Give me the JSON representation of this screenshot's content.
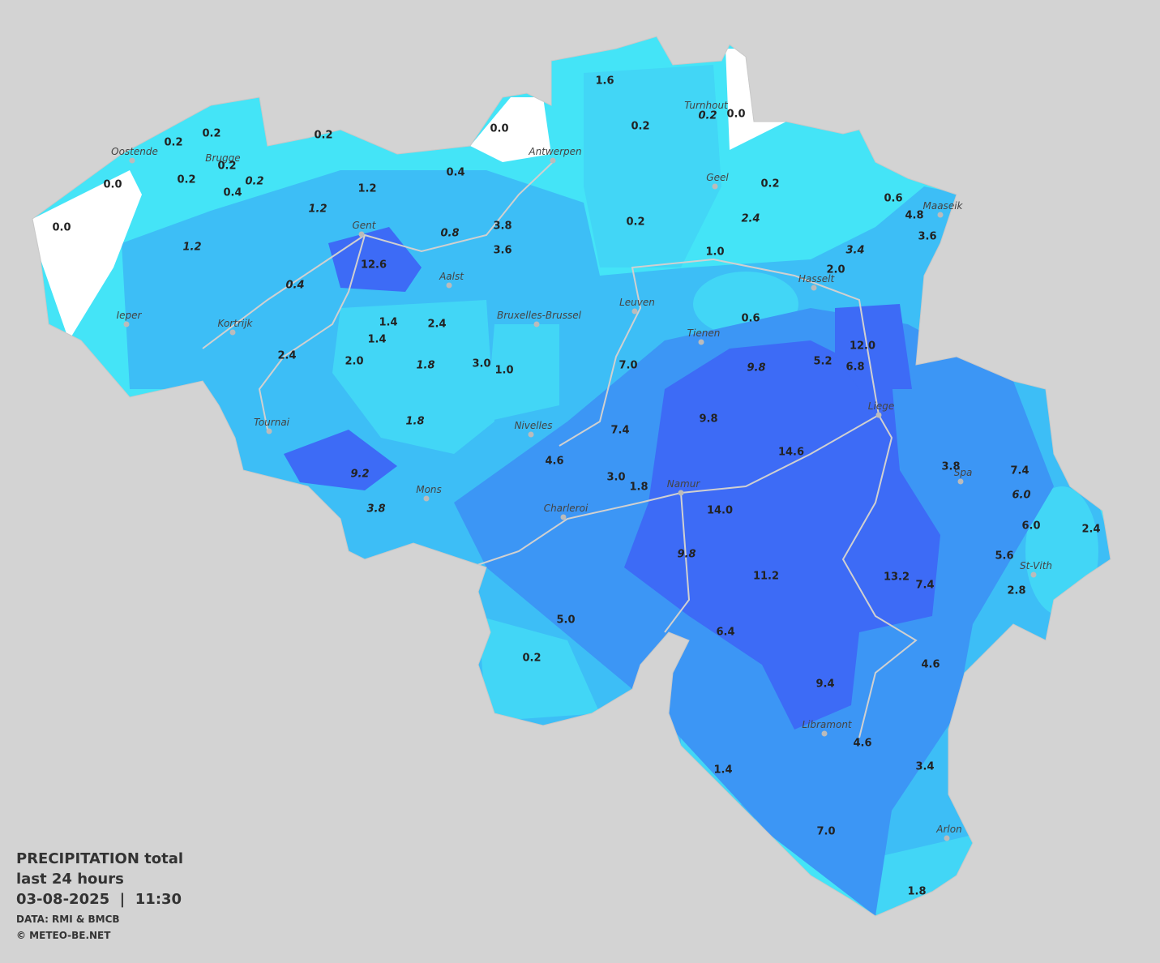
{
  "title": {
    "line1": "PRECIPITATION total",
    "line2": "last 24 hours",
    "line3": "03-08-2025  |  11:30",
    "source": "DATA: RMI & BMCB",
    "credit": "© METEO-BE.NET"
  },
  "cities": [
    "Oostende",
    "Brugge",
    "Antwerpen",
    "Turnhout",
    "Geel",
    "Maaseik",
    "Gent",
    "Aalst",
    "Hasselt",
    "Ieper",
    "Kortrijk",
    "Leuven",
    "Bruxelles-Brussel",
    "Tienen",
    "Liege",
    "Tournai",
    "Nivelles",
    "Spa",
    "Mons",
    "Namur",
    "Charleroi",
    "St-Vith",
    "Libramont",
    "Arlon"
  ],
  "stations": [
    {
      "text": "0.0",
      "italic": false
    },
    {
      "text": "0.0",
      "italic": false
    },
    {
      "text": "0.2",
      "italic": false
    },
    {
      "text": "0.2",
      "italic": false
    },
    {
      "text": "0.2",
      "italic": false
    },
    {
      "text": "0.2",
      "italic": false
    },
    {
      "text": "0.4",
      "italic": false
    },
    {
      "text": "0.2",
      "italic": true
    },
    {
      "text": "0.2",
      "italic": false
    },
    {
      "text": "1.2",
      "italic": true
    },
    {
      "text": "1.2",
      "italic": true
    },
    {
      "text": "1.2",
      "italic": false
    },
    {
      "text": "0.4",
      "italic": false
    },
    {
      "text": "0.0",
      "italic": false
    },
    {
      "text": "1.6",
      "italic": false
    },
    {
      "text": "0.2",
      "italic": false
    },
    {
      "text": "0.2",
      "italic": true
    },
    {
      "text": "0.0",
      "italic": false
    },
    {
      "text": "0.2",
      "italic": false
    },
    {
      "text": "0.2",
      "italic": false
    },
    {
      "text": "2.4",
      "italic": true
    },
    {
      "text": "0.6",
      "italic": false
    },
    {
      "text": "4.8",
      "italic": false
    },
    {
      "text": "3.6",
      "italic": false
    },
    {
      "text": "3.4",
      "italic": true
    },
    {
      "text": "2.0",
      "italic": false
    },
    {
      "text": "1.0",
      "italic": false
    },
    {
      "text": "0.6",
      "italic": false
    },
    {
      "text": "0.8",
      "italic": true
    },
    {
      "text": "3.8",
      "italic": false
    },
    {
      "text": "3.6",
      "italic": false
    },
    {
      "text": "12.6",
      "italic": false
    },
    {
      "text": "0.4",
      "italic": true
    },
    {
      "text": "1.4",
      "italic": false
    },
    {
      "text": "1.4",
      "italic": false
    },
    {
      "text": "2.4",
      "italic": false
    },
    {
      "text": "2.4",
      "italic": false
    },
    {
      "text": "2.0",
      "italic": false
    },
    {
      "text": "1.8",
      "italic": true
    },
    {
      "text": "3.0",
      "italic": false
    },
    {
      "text": "1.0",
      "italic": false
    },
    {
      "text": "7.0",
      "italic": false
    },
    {
      "text": "12.0",
      "italic": false
    },
    {
      "text": "5.2",
      "italic": false
    },
    {
      "text": "6.8",
      "italic": false
    },
    {
      "text": "9.8",
      "italic": true
    },
    {
      "text": "9.8",
      "italic": false
    },
    {
      "text": "1.8",
      "italic": true
    },
    {
      "text": "7.4",
      "italic": false
    },
    {
      "text": "14.6",
      "italic": false
    },
    {
      "text": "4.6",
      "italic": false
    },
    {
      "text": "9.2",
      "italic": true
    },
    {
      "text": "3.0",
      "italic": false
    },
    {
      "text": "1.8",
      "italic": false
    },
    {
      "text": "3.8",
      "italic": false
    },
    {
      "text": "7.4",
      "italic": false
    },
    {
      "text": "6.0",
      "italic": true
    },
    {
      "text": "3.8",
      "italic": true
    },
    {
      "text": "14.0",
      "italic": false
    },
    {
      "text": "6.0",
      "italic": false
    },
    {
      "text": "2.4",
      "italic": false
    },
    {
      "text": "9.8",
      "italic": true
    },
    {
      "text": "5.6",
      "italic": false
    },
    {
      "text": "11.2",
      "italic": false
    },
    {
      "text": "13.2",
      "italic": false
    },
    {
      "text": "7.4",
      "italic": false
    },
    {
      "text": "2.8",
      "italic": false
    },
    {
      "text": "5.0",
      "italic": false
    },
    {
      "text": "6.4",
      "italic": false
    },
    {
      "text": "0.2",
      "italic": false
    },
    {
      "text": "4.6",
      "italic": false
    },
    {
      "text": "9.4",
      "italic": false
    },
    {
      "text": "4.6",
      "italic": false
    },
    {
      "text": "1.4",
      "italic": false
    },
    {
      "text": "3.4",
      "italic": false
    },
    {
      "text": "7.0",
      "italic": false
    },
    {
      "text": "1.8",
      "italic": false
    }
  ]
}
